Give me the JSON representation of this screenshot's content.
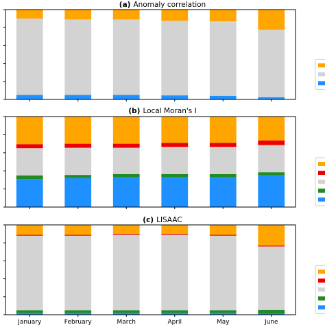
{
  "chart_data": [
    {
      "type": "bar",
      "stacked": true,
      "title_letter": "(a)",
      "title": "Anomaly correlation",
      "categories": [
        "January",
        "February",
        "March",
        "April",
        "May",
        "June"
      ],
      "show_xticklabels": false,
      "ylim": [
        0,
        1
      ],
      "legend": "right",
      "series": [
        {
          "color": "#1e90ff",
          "values": [
            0.05,
            0.05,
            0.05,
            0.045,
            0.04,
            0.025
          ]
        },
        {
          "color": "#d3d3d3",
          "values": [
            0.85,
            0.84,
            0.84,
            0.83,
            0.83,
            0.75
          ]
        },
        {
          "color": "#ffa500",
          "values": [
            0.1,
            0.11,
            0.11,
            0.125,
            0.13,
            0.225
          ]
        }
      ]
    },
    {
      "type": "bar",
      "stacked": true,
      "title_letter": "(b)",
      "title": "Local Moran's I",
      "categories": [
        "January",
        "February",
        "March",
        "April",
        "May",
        "June"
      ],
      "show_xticklabels": false,
      "ylim": [
        0,
        1
      ],
      "legend": "right",
      "series": [
        {
          "color": "#1e90ff",
          "values": [
            0.31,
            0.32,
            0.33,
            0.33,
            0.33,
            0.35
          ]
        },
        {
          "color": "#228b22",
          "values": [
            0.04,
            0.035,
            0.035,
            0.035,
            0.035,
            0.035
          ]
        },
        {
          "color": "#d3d3d3",
          "values": [
            0.3,
            0.3,
            0.29,
            0.3,
            0.3,
            0.3
          ]
        },
        {
          "color": "#ee0000",
          "values": [
            0.045,
            0.045,
            0.045,
            0.045,
            0.045,
            0.05
          ]
        },
        {
          "color": "#ffa500",
          "values": [
            0.305,
            0.3,
            0.3,
            0.29,
            0.29,
            0.265
          ]
        }
      ]
    },
    {
      "type": "bar",
      "stacked": true,
      "title_letter": "(c)",
      "title": "LISAAC",
      "categories": [
        "January",
        "February",
        "March",
        "April",
        "May",
        "June"
      ],
      "show_xticklabels": true,
      "ylim": [
        0,
        1
      ],
      "legend": "right",
      "series": [
        {
          "color": "#1e90ff",
          "values": [
            0.02,
            0.02,
            0.02,
            0.02,
            0.02,
            0.01
          ]
        },
        {
          "color": "#228b22",
          "values": [
            0.03,
            0.03,
            0.03,
            0.03,
            0.03,
            0.045
          ]
        },
        {
          "color": "#d3d3d3",
          "values": [
            0.83,
            0.83,
            0.84,
            0.84,
            0.83,
            0.705
          ]
        },
        {
          "color": "#ee0000",
          "values": [
            0.01,
            0.01,
            0.01,
            0.01,
            0.01,
            0.01
          ]
        },
        {
          "color": "#ffa500",
          "values": [
            0.11,
            0.11,
            0.1,
            0.1,
            0.11,
            0.23
          ]
        }
      ]
    }
  ]
}
